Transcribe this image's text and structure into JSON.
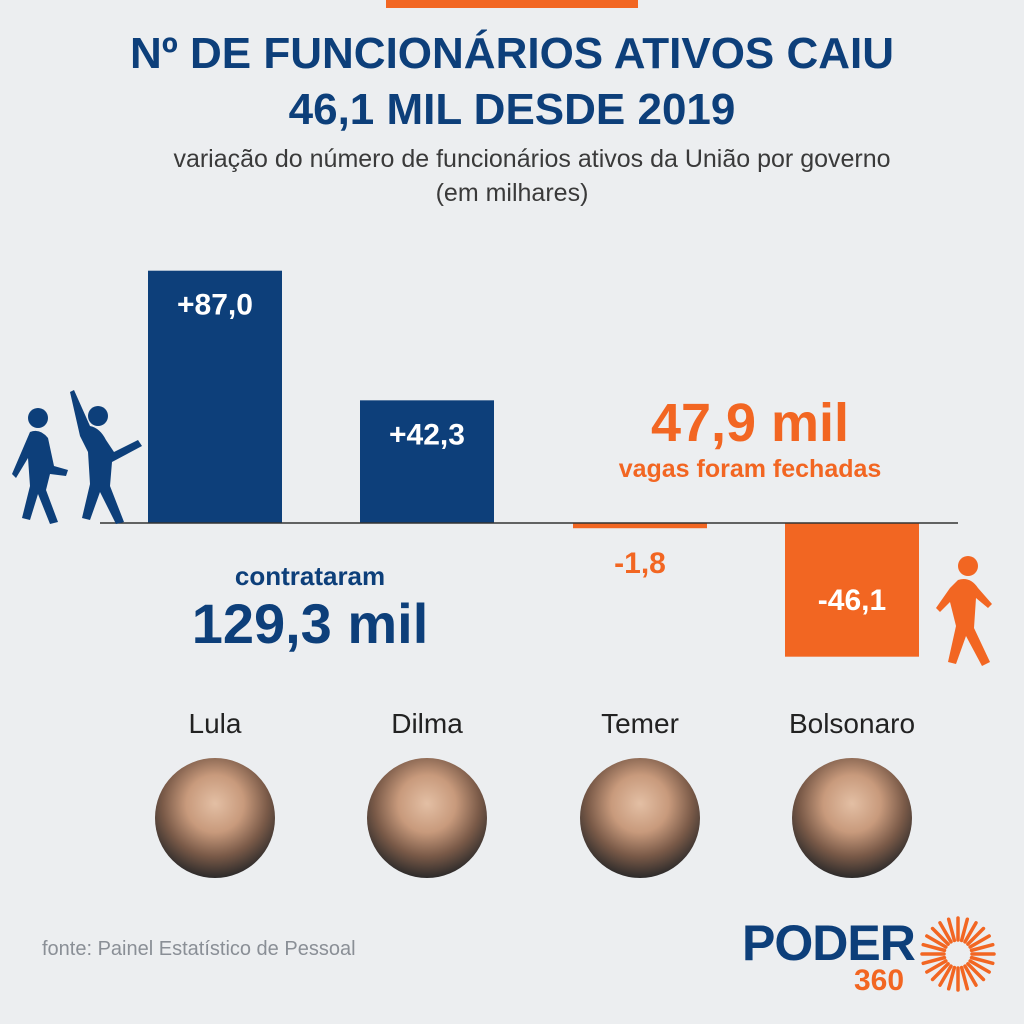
{
  "header": {
    "title_line1": "Nº DE FUNCIONÁRIOS ATIVOS CAIU",
    "title_line2": "46,1 MIL DESDE 2019",
    "subtitle_line1": "variação do número de funcionários ativos da União por governo",
    "subtitle_line2": "(em milhares)"
  },
  "chart_data": {
    "type": "bar",
    "title": "Nº DE FUNCIONÁRIOS ATIVOS CAIU 46,1 MIL DESDE 2019",
    "subtitle": "variação do número de funcionários ativos da União por governo (em milhares)",
    "categories": [
      "Lula",
      "Dilma",
      "Temer",
      "Bolsonaro"
    ],
    "values": [
      87.0,
      42.3,
      -1.8,
      -46.1
    ],
    "value_labels": [
      "+87,0",
      "+42,3",
      "-1,8",
      "-46,1"
    ],
    "ylim": [
      -50,
      90
    ],
    "grid": false,
    "legend": "none",
    "colors": {
      "positive": "#0d3f7a",
      "negative": "#f26622"
    }
  },
  "annotations": {
    "hired_small": "contrataram",
    "hired_big": "129,3 mil",
    "closed_big": "47,9 mil",
    "closed_small": "vagas foram fechadas"
  },
  "people": [
    {
      "name": "Lula",
      "icon": "lula-portrait"
    },
    {
      "name": "Dilma",
      "icon": "dilma-portrait"
    },
    {
      "name": "Temer",
      "icon": "temer-portrait"
    },
    {
      "name": "Bolsonaro",
      "icon": "bolsonaro-portrait"
    }
  ],
  "footer": {
    "source": "fonte: Painel Estatístico de Pessoal",
    "logo_word": "PODER",
    "logo_number": "360"
  },
  "colors": {
    "navy": "#0d3f7a",
    "orange": "#f26622",
    "background": "#eceef0"
  }
}
